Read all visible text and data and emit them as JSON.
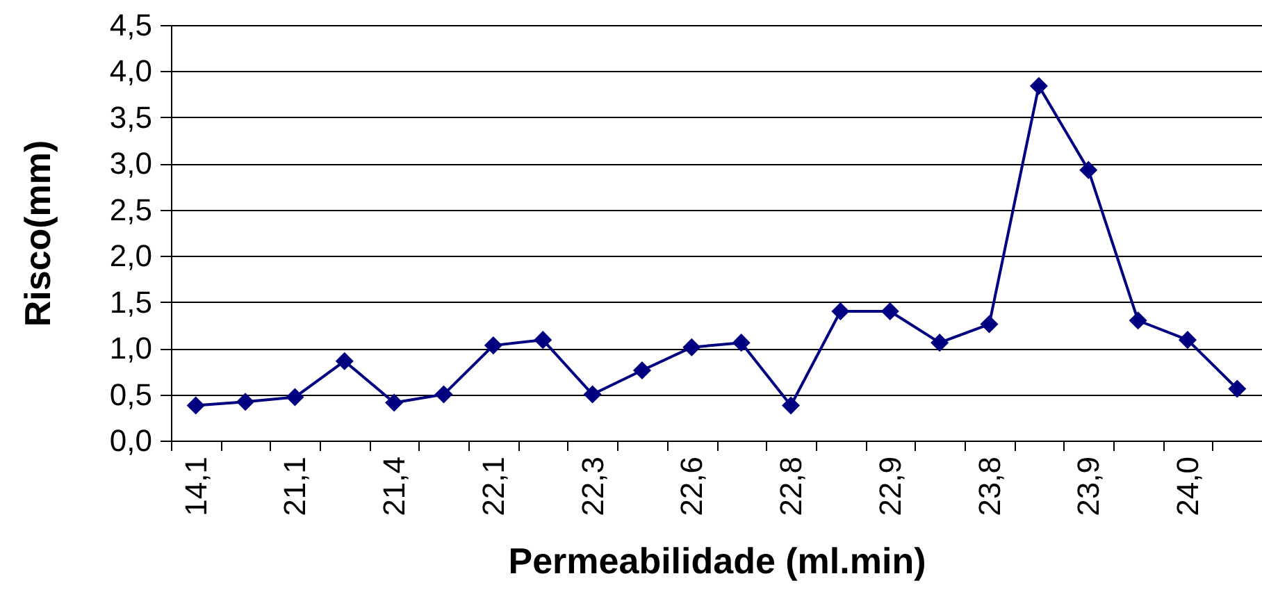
{
  "chart_data": {
    "type": "line",
    "xlabel": "Permeabilidade (ml.min)",
    "ylabel": "Risco(mm)",
    "categories": [
      "14,1",
      null,
      "21,1",
      null,
      "21,4",
      null,
      "22,1",
      null,
      "22,3",
      null,
      "22,6",
      null,
      "22,8",
      null,
      "22,9",
      null,
      "23,8",
      null,
      "23,9",
      null,
      "24,0",
      null
    ],
    "series": [
      {
        "color": "#000080",
        "values": [
          0.38,
          0.42,
          0.47,
          0.86,
          0.41,
          0.5,
          1.03,
          1.09,
          0.5,
          0.76,
          1.01,
          1.06,
          0.38,
          1.4,
          1.4,
          1.06,
          1.26,
          3.84,
          2.93,
          1.3,
          1.09,
          0.56
        ]
      }
    ],
    "ylim": [
      0,
      4.5
    ],
    "yticks": [
      {
        "value": 0,
        "label": "0,0"
      },
      {
        "value": 0.5,
        "label": "0,5"
      },
      {
        "value": 1,
        "label": "1,0"
      },
      {
        "value": 1.5,
        "label": "1,5"
      },
      {
        "value": 2,
        "label": "2,0"
      },
      {
        "value": 2.5,
        "label": "2,5"
      },
      {
        "value": 3,
        "label": "3,0"
      },
      {
        "value": 3.5,
        "label": "3,5"
      },
      {
        "value": 4,
        "label": "4,0"
      },
      {
        "value": 4.5,
        "label": "4,5"
      }
    ],
    "grid": "y",
    "marker": "diamond",
    "line_style": "solid"
  }
}
